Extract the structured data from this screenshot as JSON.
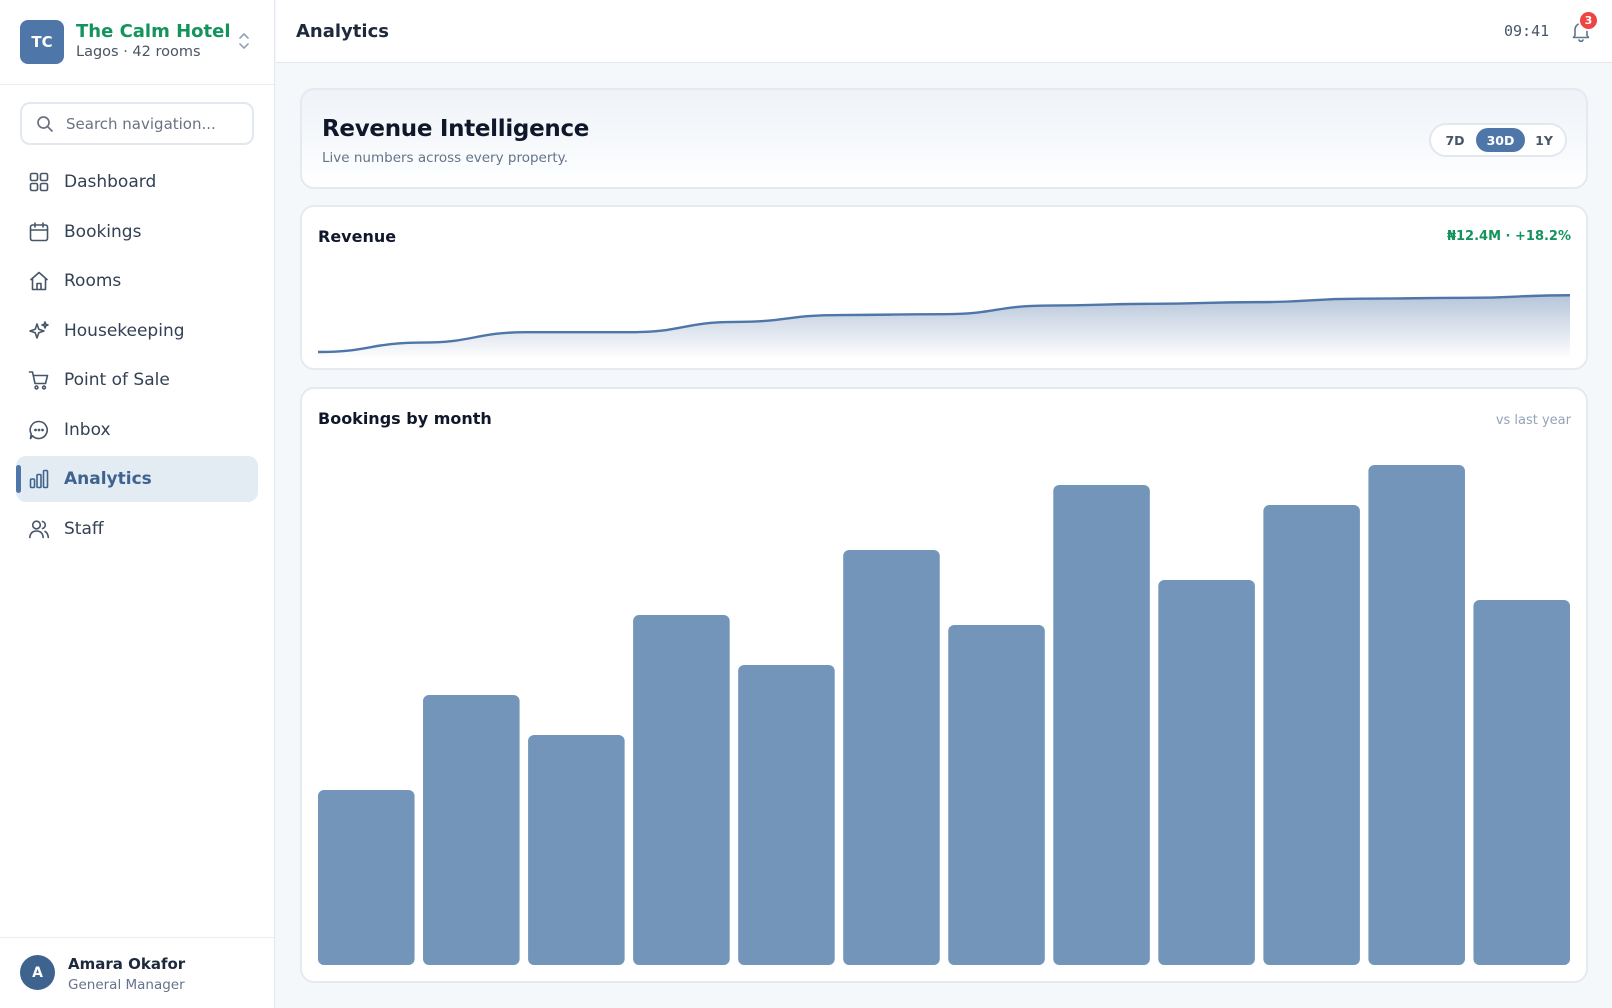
{
  "sidebar": {
    "hotel": {
      "initials": "TC",
      "name": "The Calm Hotel",
      "subtitle": "Lagos · 42 rooms"
    },
    "search": {
      "placeholder": "Search navigation..."
    },
    "items": [
      {
        "label": "Dashboard",
        "icon": "grid-icon"
      },
      {
        "label": "Bookings",
        "icon": "calendar-icon"
      },
      {
        "label": "Rooms",
        "icon": "home-icon"
      },
      {
        "label": "Housekeeping",
        "icon": "sparkles-icon"
      },
      {
        "label": "Point of Sale",
        "icon": "cart-icon"
      },
      {
        "label": "Inbox",
        "icon": "chat-icon"
      },
      {
        "label": "Analytics",
        "icon": "bar-chart-icon",
        "active": true
      },
      {
        "label": "Staff",
        "icon": "users-icon"
      }
    ],
    "user": {
      "initial": "A",
      "name": "Amara Okafor",
      "role": "General Manager"
    }
  },
  "header": {
    "title": "Analytics",
    "time": "09:41",
    "notifications": "3"
  },
  "hero": {
    "title": "Revenue Intelligence",
    "subtitle": "Live numbers across every property.",
    "ranges": [
      "7D",
      "30D",
      "1Y"
    ],
    "selected_range": "30D"
  },
  "revenue_card": {
    "title": "Revenue",
    "stat": "₦12.4M · +18.2%"
  },
  "bookings_card": {
    "title": "Bookings by month",
    "note": "vs last year"
  },
  "colors": {
    "accent": "#4f76a8",
    "positive": "#15935d",
    "bar": "#7395b9",
    "badge": "#ef4444"
  },
  "chart_data": [
    {
      "type": "area",
      "title": "Revenue",
      "x": [
        0,
        1,
        2,
        3,
        4,
        5,
        6,
        7,
        8,
        9,
        10,
        11,
        12
      ],
      "values": [
        0,
        11,
        23,
        23,
        35,
        43,
        44,
        54,
        56,
        58,
        62,
        63,
        66
      ],
      "ylim": [
        0,
        100
      ]
    },
    {
      "type": "bar",
      "title": "Bookings by month",
      "categories": [
        "",
        "",
        "",
        "",
        "",
        "",
        "",
        "",
        "",
        "",
        "",
        ""
      ],
      "values": [
        35,
        54,
        46,
        70,
        60,
        83,
        68,
        96,
        77,
        92,
        100,
        73
      ],
      "ylim": [
        0,
        100
      ]
    }
  ]
}
